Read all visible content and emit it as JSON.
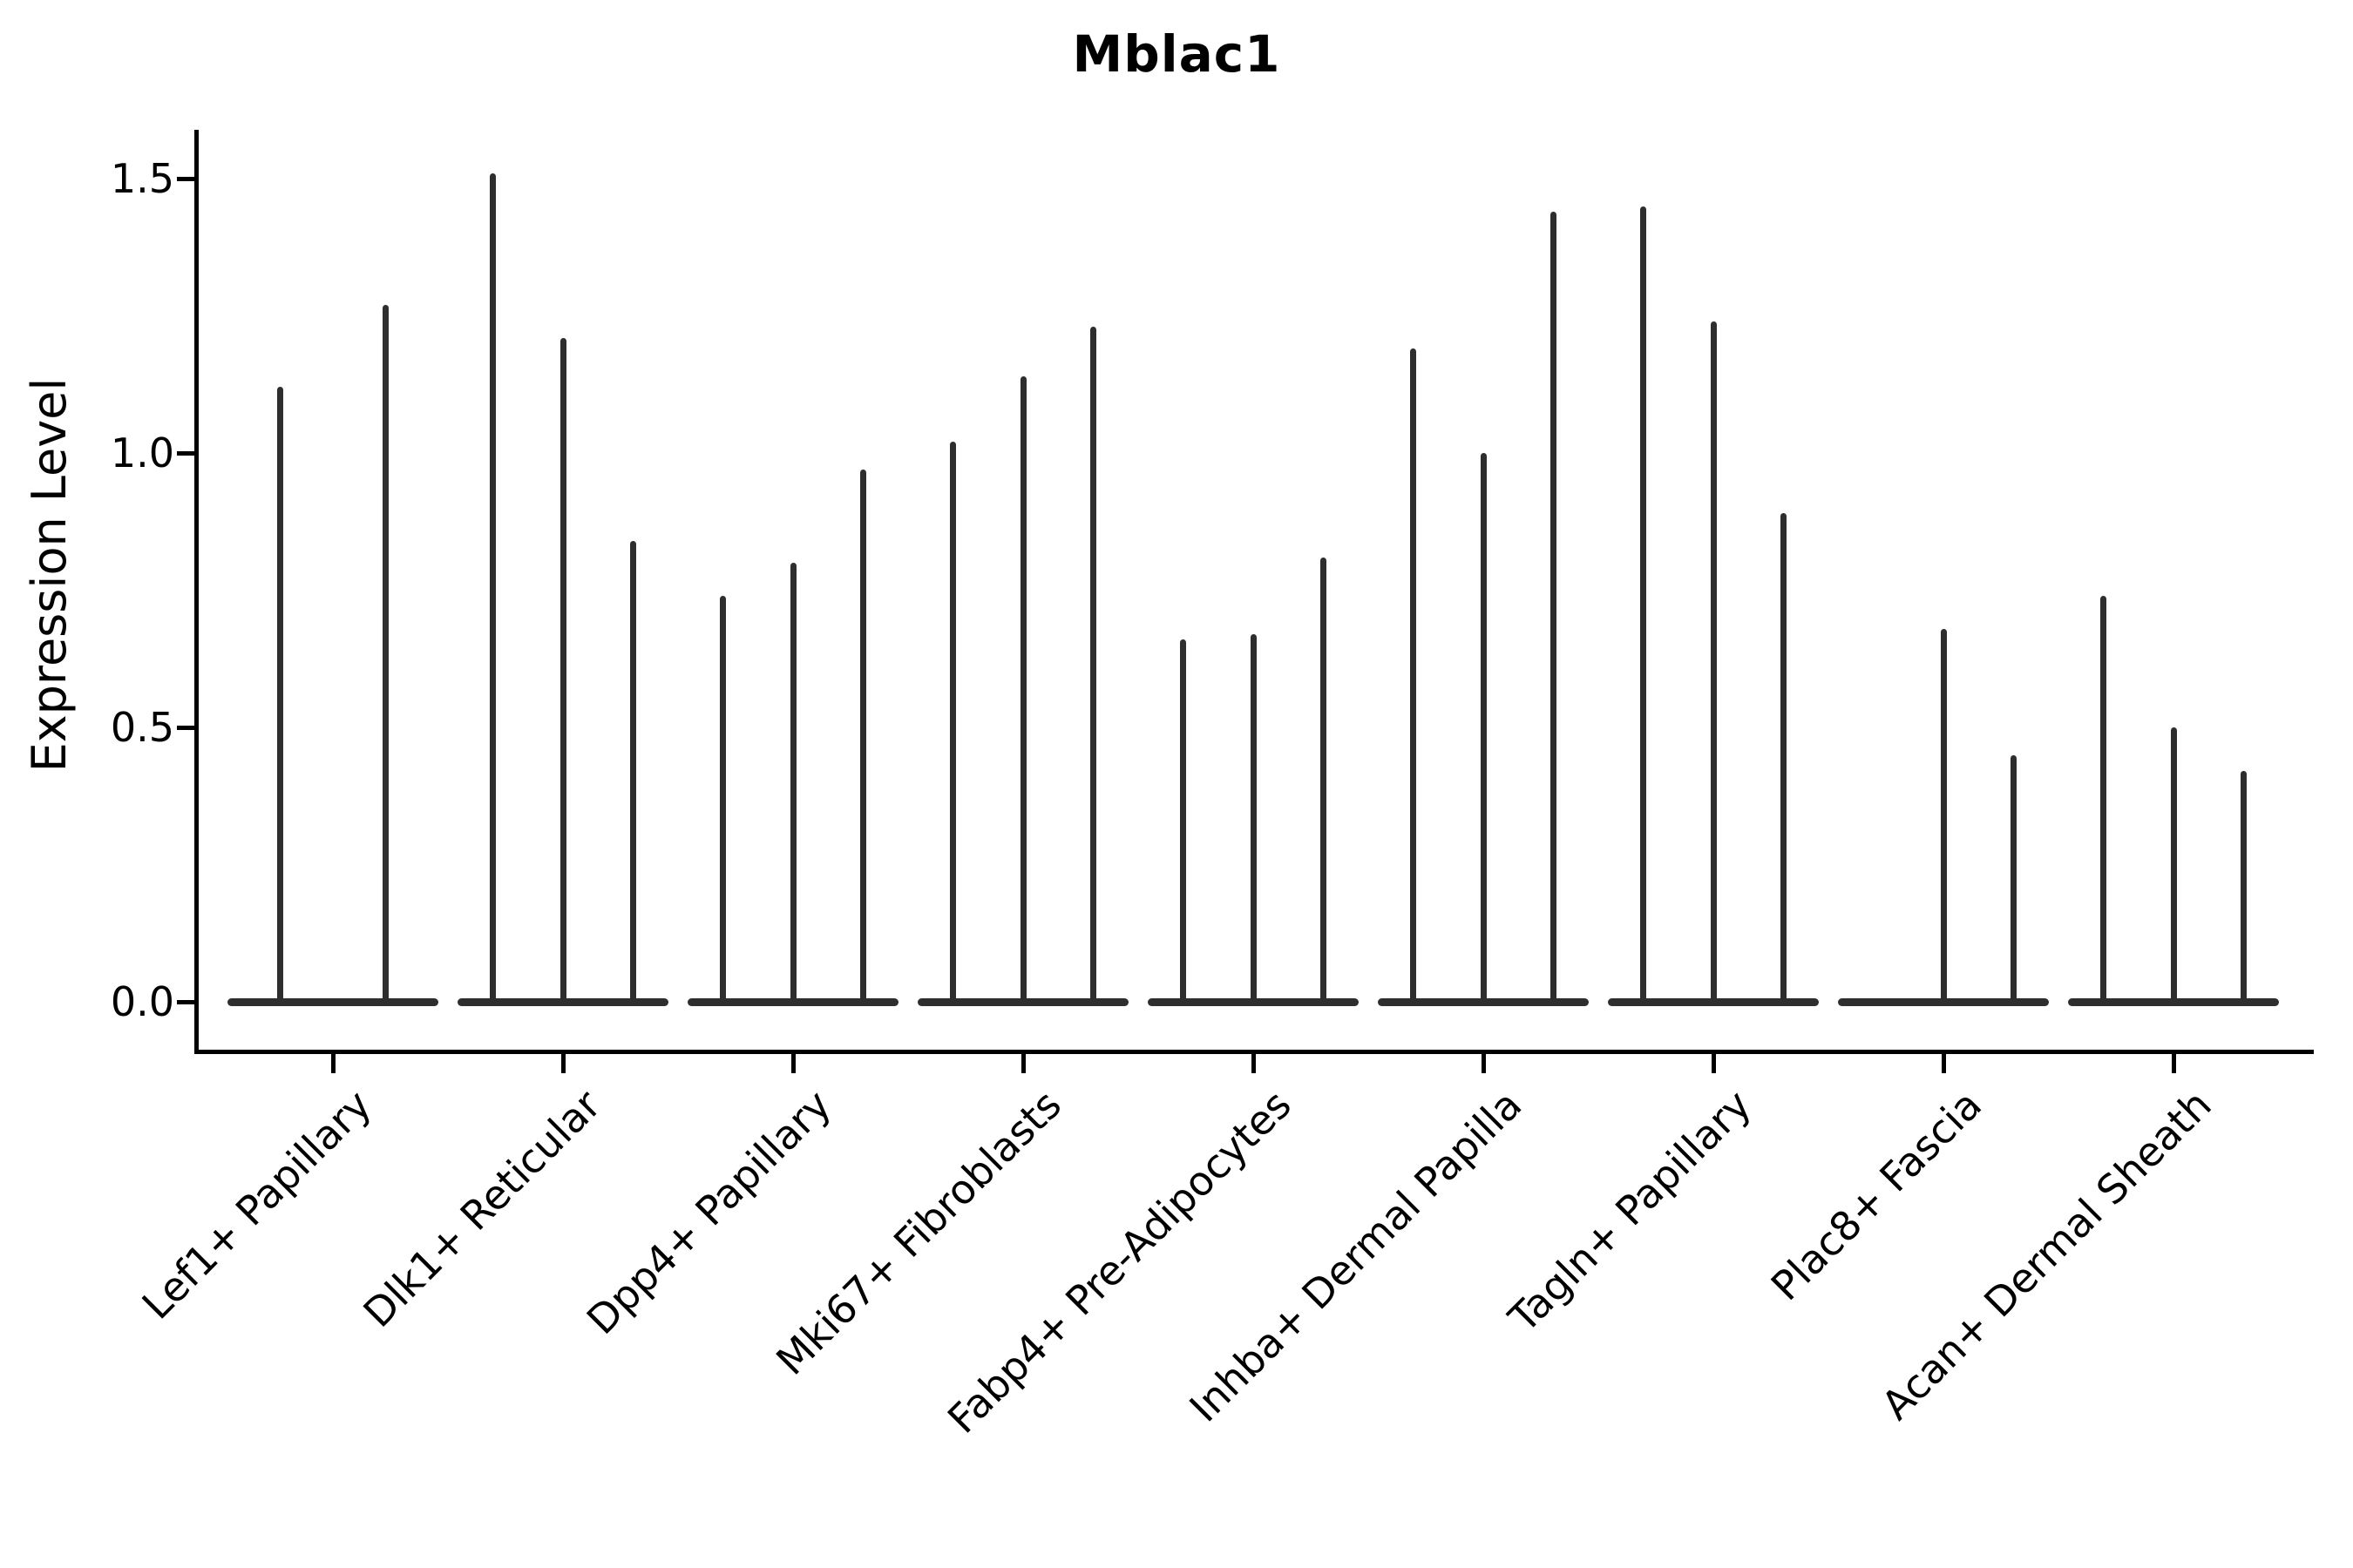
{
  "figure": {
    "title": "Mblac1",
    "ylabel": "Expression Level"
  },
  "colors": {
    "violin": "#2e2e2e",
    "axis": "#000000",
    "text": "#000000",
    "background": "#ffffff"
  },
  "chart_data": {
    "type": "violin",
    "title": "Mblac1",
    "xlabel": "",
    "ylabel": "Expression Level",
    "ylim": [
      -0.09,
      1.59
    ],
    "grid": false,
    "legend_position": "none",
    "yticks": [
      {
        "label": "0.0",
        "value": 0.0
      },
      {
        "label": "0.5",
        "value": 0.5
      },
      {
        "label": "1.0",
        "value": 1.0
      },
      {
        "label": "1.5",
        "value": 1.5
      }
    ],
    "groups": [
      {
        "label": "Lef1+ Papillary",
        "spike_max_values": [
          1.12,
          1.27
        ]
      },
      {
        "label": "Dlk1+ Reticular",
        "spike_max_values": [
          1.51,
          1.21,
          0.84
        ]
      },
      {
        "label": "Dpp4+ Papillary",
        "spike_max_values": [
          0.74,
          0.8,
          0.97
        ]
      },
      {
        "label": "Mki67+ Fibroblasts",
        "spike_max_values": [
          1.02,
          1.14,
          1.23
        ]
      },
      {
        "label": "Fabp4+ Pre-Adipocytes",
        "spike_max_values": [
          0.66,
          0.67,
          0.81
        ]
      },
      {
        "label": "Inhba+ Dermal Papilla",
        "spike_max_values": [
          1.19,
          1.0,
          1.44
        ]
      },
      {
        "label": "Tagln+ Papillary",
        "spike_max_values": [
          1.45,
          1.24,
          0.89
        ]
      },
      {
        "label": "Plac8+ Fascia",
        "spike_max_values": [
          0.0,
          0.68,
          0.45
        ]
      },
      {
        "label": "Acan+ Dermal Sheath",
        "spike_max_values": [
          0.74,
          0.5,
          0.42
        ]
      }
    ]
  }
}
